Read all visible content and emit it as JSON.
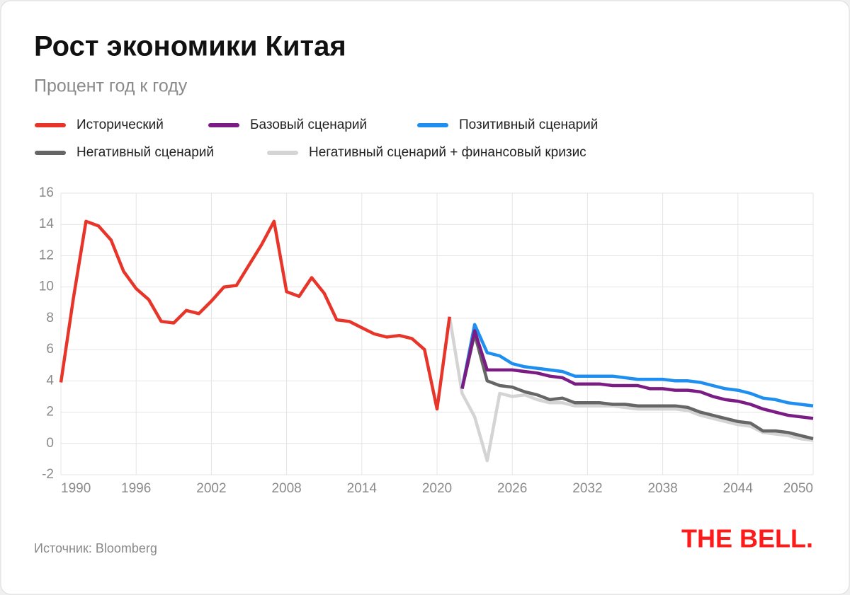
{
  "chart_data": {
    "type": "line",
    "title": "Рост экономики Китая",
    "subtitle": "Процент год к году",
    "source": "Источник: Bloomberg",
    "logo": "THE BELL.",
    "xlim": [
      1990,
      2050
    ],
    "xticks": [
      1990,
      1996,
      2002,
      2008,
      2014,
      2020,
      2026,
      2032,
      2038,
      2044,
      2050
    ],
    "ylim": [
      -2,
      16
    ],
    "yticks": [
      -2,
      0,
      2,
      4,
      6,
      8,
      10,
      12,
      14,
      16
    ],
    "grid": true,
    "series": [
      {
        "name": "Исторический",
        "color": "#e8352a",
        "x": [
          1990,
          1991,
          1992,
          1993,
          1994,
          1995,
          1996,
          1997,
          1998,
          1999,
          2000,
          2001,
          2002,
          2003,
          2004,
          2005,
          2006,
          2007,
          2008,
          2009,
          2010,
          2011,
          2012,
          2013,
          2014,
          2015,
          2016,
          2017,
          2018,
          2019,
          2020,
          2021
        ],
        "values": [
          3.9,
          9.3,
          14.2,
          13.9,
          13.0,
          11.0,
          9.9,
          9.2,
          7.8,
          7.7,
          8.5,
          8.3,
          9.1,
          10.0,
          10.1,
          11.4,
          12.7,
          14.2,
          9.7,
          9.4,
          10.6,
          9.6,
          7.9,
          7.8,
          7.4,
          7.0,
          6.8,
          6.9,
          6.7,
          6.0,
          2.2,
          8.1
        ]
      },
      {
        "name": "Базовый сценарий",
        "color": "#7b1b84",
        "x": [
          2022,
          2023,
          2024,
          2025,
          2026,
          2027,
          2028,
          2029,
          2030,
          2031,
          2032,
          2033,
          2034,
          2035,
          2036,
          2037,
          2038,
          2039,
          2040,
          2041,
          2042,
          2043,
          2044,
          2045,
          2046,
          2047,
          2048,
          2049,
          2050
        ],
        "values": [
          3.5,
          7.2,
          4.7,
          4.7,
          4.7,
          4.6,
          4.5,
          4.3,
          4.2,
          3.8,
          3.8,
          3.8,
          3.7,
          3.7,
          3.7,
          3.5,
          3.5,
          3.4,
          3.4,
          3.3,
          3.0,
          2.8,
          2.7,
          2.5,
          2.2,
          2.0,
          1.8,
          1.7,
          1.6
        ]
      },
      {
        "name": "Позитивный сценарий",
        "color": "#1e8ff0",
        "x": [
          2022,
          2023,
          2024,
          2025,
          2026,
          2027,
          2028,
          2029,
          2030,
          2031,
          2032,
          2033,
          2034,
          2035,
          2036,
          2037,
          2038,
          2039,
          2040,
          2041,
          2042,
          2043,
          2044,
          2045,
          2046,
          2047,
          2048,
          2049,
          2050
        ],
        "values": [
          3.5,
          7.6,
          5.8,
          5.6,
          5.1,
          4.9,
          4.8,
          4.7,
          4.6,
          4.3,
          4.3,
          4.3,
          4.3,
          4.2,
          4.1,
          4.1,
          4.1,
          4.0,
          4.0,
          3.9,
          3.7,
          3.5,
          3.4,
          3.2,
          2.9,
          2.8,
          2.6,
          2.5,
          2.4
        ]
      },
      {
        "name": "Негативный сценарий",
        "color": "#666666",
        "x": [
          2022,
          2023,
          2024,
          2025,
          2026,
          2027,
          2028,
          2029,
          2030,
          2031,
          2032,
          2033,
          2034,
          2035,
          2036,
          2037,
          2038,
          2039,
          2040,
          2041,
          2042,
          2043,
          2044,
          2045,
          2046,
          2047,
          2048,
          2049,
          2050
        ],
        "values": [
          3.5,
          7.0,
          4.0,
          3.7,
          3.6,
          3.3,
          3.1,
          2.8,
          2.9,
          2.6,
          2.6,
          2.6,
          2.5,
          2.5,
          2.4,
          2.4,
          2.4,
          2.4,
          2.3,
          2.0,
          1.8,
          1.6,
          1.4,
          1.3,
          0.8,
          0.8,
          0.7,
          0.5,
          0.3
        ]
      },
      {
        "name": "Негативный сценарий + финансовый кризис",
        "color": "#d4d4d4",
        "x": [
          2021,
          2022,
          2023,
          2024,
          2025,
          2026,
          2027,
          2028,
          2029,
          2030,
          2031,
          2032,
          2033,
          2034,
          2035,
          2036,
          2037,
          2038,
          2039,
          2040,
          2041,
          2042,
          2043,
          2044,
          2045,
          2046,
          2047,
          2048,
          2049,
          2050
        ],
        "values": [
          8.1,
          3.2,
          1.7,
          -1.1,
          3.2,
          3.0,
          3.1,
          2.8,
          2.6,
          2.6,
          2.4,
          2.4,
          2.4,
          2.4,
          2.3,
          2.2,
          2.2,
          2.2,
          2.2,
          2.1,
          1.8,
          1.6,
          1.4,
          1.2,
          1.1,
          0.7,
          0.6,
          0.5,
          0.3,
          0.2
        ]
      }
    ]
  }
}
